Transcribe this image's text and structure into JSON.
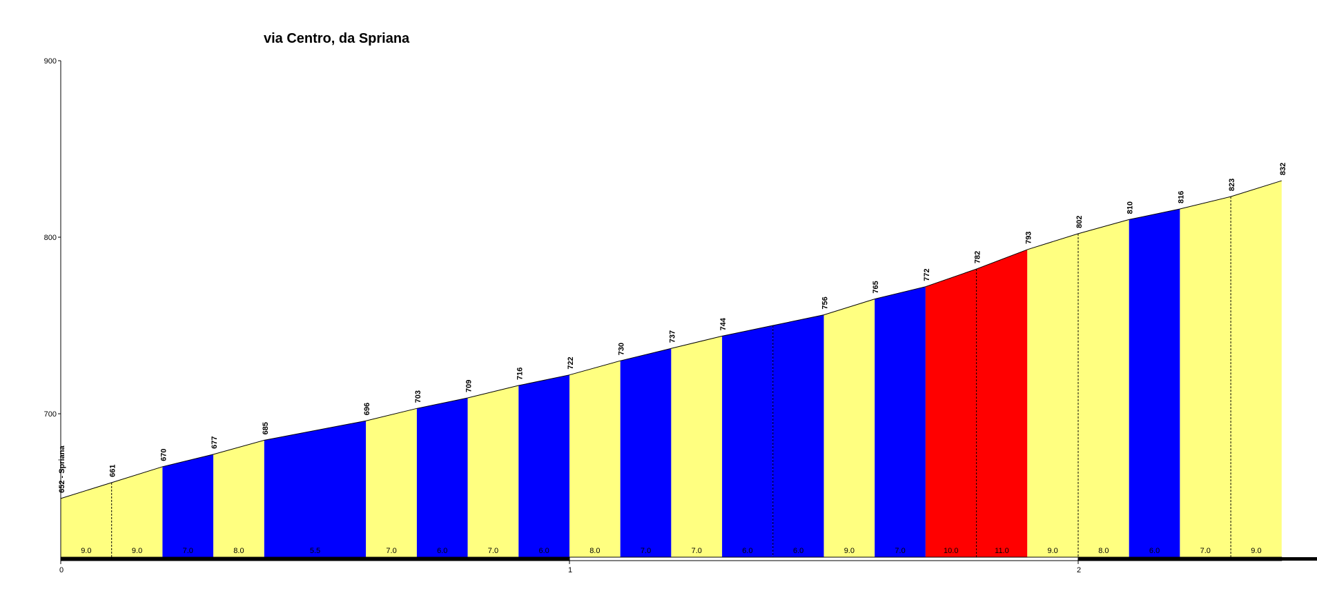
{
  "chart_data": {
    "type": "area",
    "title": "via Centro, da Spriana",
    "xlabel": "",
    "ylabel": "",
    "xlim": [
      0,
      2.4
    ],
    "ylim": [
      620,
      900
    ],
    "y_ticks": [
      700,
      800,
      900
    ],
    "x_ticks": [
      0,
      1,
      2
    ],
    "grid": false,
    "legend": "none",
    "start_label": "652 - Spriana",
    "points": [
      {
        "km": 0.0,
        "elev": 652,
        "label": "652 - Spriana"
      },
      {
        "km": 0.1,
        "elev": 661,
        "label": "661"
      },
      {
        "km": 0.2,
        "elev": 670,
        "label": "670"
      },
      {
        "km": 0.3,
        "elev": 677,
        "label": "677"
      },
      {
        "km": 0.4,
        "elev": 685,
        "label": "685"
      },
      {
        "km": 0.6,
        "elev": 696,
        "label": "696"
      },
      {
        "km": 0.7,
        "elev": 703,
        "label": "703"
      },
      {
        "km": 0.8,
        "elev": 709,
        "label": "709"
      },
      {
        "km": 0.9,
        "elev": 716,
        "label": "716"
      },
      {
        "km": 1.0,
        "elev": 722,
        "label": "722"
      },
      {
        "km": 1.1,
        "elev": 730,
        "label": "730"
      },
      {
        "km": 1.2,
        "elev": 737,
        "label": "737"
      },
      {
        "km": 1.3,
        "elev": 744,
        "label": "744"
      },
      {
        "km": 1.4,
        "elev": 750,
        "label": ""
      },
      {
        "km": 1.5,
        "elev": 756,
        "label": "756"
      },
      {
        "km": 1.6,
        "elev": 765,
        "label": "765"
      },
      {
        "km": 1.7,
        "elev": 772,
        "label": "772"
      },
      {
        "km": 1.8,
        "elev": 782,
        "label": "782"
      },
      {
        "km": 1.9,
        "elev": 793,
        "label": "793"
      },
      {
        "km": 2.0,
        "elev": 802,
        "label": "802"
      },
      {
        "km": 2.1,
        "elev": 810,
        "label": "810"
      },
      {
        "km": 2.2,
        "elev": 816,
        "label": "816"
      },
      {
        "km": 2.3,
        "elev": 823,
        "label": "823"
      },
      {
        "km": 2.4,
        "elev": 832,
        "label": "832"
      }
    ],
    "segments": [
      {
        "from": 0.0,
        "to": 0.1,
        "gradient": "9.0",
        "color": "#ffff80",
        "divider": true
      },
      {
        "from": 0.1,
        "to": 0.2,
        "gradient": "9.0",
        "color": "#ffff80",
        "divider": false
      },
      {
        "from": 0.2,
        "to": 0.3,
        "gradient": "7.0",
        "color": "#0000ff",
        "divider": false
      },
      {
        "from": 0.3,
        "to": 0.4,
        "gradient": "8.0",
        "color": "#ffff80",
        "divider": false
      },
      {
        "from": 0.4,
        "to": 0.6,
        "gradient": "5.5",
        "color": "#0000ff",
        "divider": false
      },
      {
        "from": 0.6,
        "to": 0.7,
        "gradient": "7.0",
        "color": "#ffff80",
        "divider": false
      },
      {
        "from": 0.7,
        "to": 0.8,
        "gradient": "6.0",
        "color": "#0000ff",
        "divider": false
      },
      {
        "from": 0.8,
        "to": 0.9,
        "gradient": "7.0",
        "color": "#ffff80",
        "divider": false
      },
      {
        "from": 0.9,
        "to": 1.0,
        "gradient": "6.0",
        "color": "#0000ff",
        "divider": false
      },
      {
        "from": 1.0,
        "to": 1.1,
        "gradient": "8.0",
        "color": "#ffff80",
        "divider": false
      },
      {
        "from": 1.1,
        "to": 1.2,
        "gradient": "7.0",
        "color": "#0000ff",
        "divider": false
      },
      {
        "from": 1.2,
        "to": 1.3,
        "gradient": "7.0",
        "color": "#ffff80",
        "divider": false
      },
      {
        "from": 1.3,
        "to": 1.4,
        "gradient": "6.0",
        "color": "#0000ff",
        "divider": true
      },
      {
        "from": 1.4,
        "to": 1.5,
        "gradient": "6.0",
        "color": "#0000ff",
        "divider": false
      },
      {
        "from": 1.5,
        "to": 1.6,
        "gradient": "9.0",
        "color": "#ffff80",
        "divider": false
      },
      {
        "from": 1.6,
        "to": 1.7,
        "gradient": "7.0",
        "color": "#0000ff",
        "divider": false
      },
      {
        "from": 1.7,
        "to": 1.8,
        "gradient": "10.0",
        "color": "#ff0000",
        "divider": true
      },
      {
        "from": 1.8,
        "to": 1.9,
        "gradient": "11.0",
        "color": "#ff0000",
        "divider": false
      },
      {
        "from": 1.9,
        "to": 2.0,
        "gradient": "9.0",
        "color": "#ffff80",
        "divider": true
      },
      {
        "from": 2.0,
        "to": 2.1,
        "gradient": "8.0",
        "color": "#ffff80",
        "divider": false
      },
      {
        "from": 2.1,
        "to": 2.2,
        "gradient": "6.0",
        "color": "#0000ff",
        "divider": false
      },
      {
        "from": 2.2,
        "to": 2.3,
        "gradient": "7.0",
        "color": "#ffff80",
        "divider": true
      },
      {
        "from": 2.3,
        "to": 2.4,
        "gradient": "9.0",
        "color": "#ffff80",
        "divider": false
      }
    ]
  }
}
